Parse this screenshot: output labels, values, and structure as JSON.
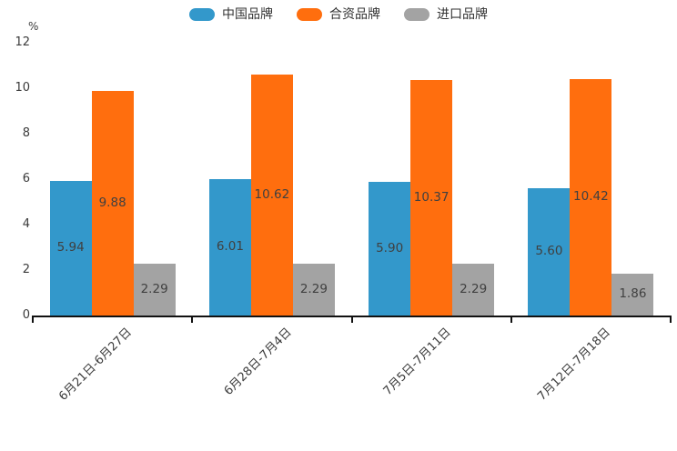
{
  "chart_data": {
    "type": "bar",
    "title": "",
    "xlabel": "",
    "ylabel": "%",
    "legend_position": "top",
    "grid": false,
    "value_labels": "centered-inside-bars",
    "ylim": [
      0,
      12
    ],
    "yticks": [
      0,
      2,
      4,
      6,
      8,
      10,
      12
    ],
    "categories": [
      "6月21日-6月27日",
      "6月28日-7月4日",
      "7月5日-7月11日",
      "7月12日-7月18日"
    ],
    "series": [
      {
        "name": "中国品牌",
        "color": "#3398cb",
        "values": [
          5.94,
          6.01,
          5.9,
          5.6
        ]
      },
      {
        "name": "合资品牌",
        "color": "#ff6e0e",
        "values": [
          9.88,
          10.62,
          10.37,
          10.42
        ]
      },
      {
        "name": "进口品牌",
        "color": "#a3a3a3",
        "values": [
          2.29,
          2.29,
          2.29,
          1.86
        ]
      }
    ],
    "colors": {
      "axis": "#111111",
      "tick_text": "#3b3b3b",
      "bar_value_text": "#404040",
      "legend_text": "#333333"
    }
  }
}
